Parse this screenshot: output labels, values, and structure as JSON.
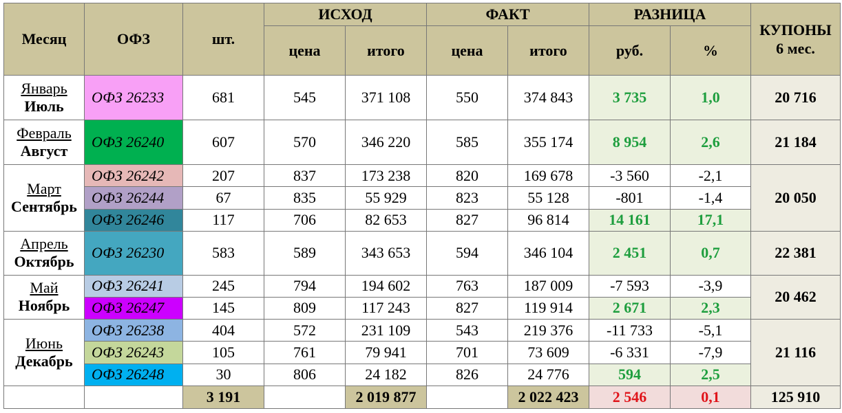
{
  "header": {
    "month": "Месяц",
    "ofz": "ОФЗ",
    "qty": "шт.",
    "coupons": "КУПОНЫ\n6 мес.",
    "sections": [
      {
        "title": "ИСХОД",
        "cols": [
          "цена",
          "итого"
        ]
      },
      {
        "title": "ФАКТ",
        "cols": [
          "цена",
          "итого"
        ]
      },
      {
        "title": "РАЗНИЦА",
        "cols": [
          "руб.",
          "%"
        ]
      }
    ]
  },
  "groups": [
    {
      "months": [
        "Январь",
        "Июль"
      ],
      "coupon": "20 716",
      "rows": [
        {
          "ofz": "ОФЗ 26233",
          "color": "#f8a0f6",
          "qty": "681",
          "price": "545",
          "total": "371 108",
          "fact_price": "550",
          "fact_total": "374 843",
          "diff": "3 735",
          "pct": "1,0"
        }
      ]
    },
    {
      "months": [
        "Февраль",
        "Август"
      ],
      "coupon": "21 184",
      "rows": [
        {
          "ofz": "ОФЗ 26240",
          "color": "#00b050",
          "qty": "607",
          "price": "570",
          "total": "346 220",
          "fact_price": "585",
          "fact_total": "355 174",
          "diff": "8 954",
          "pct": "2,6"
        }
      ]
    },
    {
      "months": [
        "Март",
        "Сентябрь"
      ],
      "coupon": "20 050",
      "rows": [
        {
          "ofz": "ОФЗ 26242",
          "color": "#e6b8b7",
          "qty": "207",
          "price": "837",
          "total": "173 238",
          "fact_price": "820",
          "fact_total": "169 678",
          "diff": "-3 560",
          "pct": "-2,1"
        },
        {
          "ofz": "ОФЗ 26244",
          "color": "#b1a0c7",
          "qty": "67",
          "price": "835",
          "total": "55 929",
          "fact_price": "823",
          "fact_total": "55 128",
          "diff": "-801",
          "pct": "-1,4"
        },
        {
          "ofz": "ОФЗ 26246",
          "color": "#31869b",
          "qty": "117",
          "price": "706",
          "total": "82 653",
          "fact_price": "827",
          "fact_total": "96 814",
          "diff": "14 161",
          "pct": "17,1"
        }
      ]
    },
    {
      "months": [
        "Апрель",
        "Октябрь"
      ],
      "coupon": "22 381",
      "rows": [
        {
          "ofz": "ОФЗ 26230",
          "color": "#44a7c0",
          "qty": "583",
          "price": "589",
          "total": "343 653",
          "fact_price": "594",
          "fact_total": "346 104",
          "diff": "2 451",
          "pct": "0,7"
        }
      ]
    },
    {
      "months": [
        "Май",
        "Ноябрь"
      ],
      "coupon": "20 462",
      "rows": [
        {
          "ofz": "ОФЗ 26241",
          "color": "#b8cce4",
          "qty": "245",
          "price": "794",
          "total": "194 602",
          "fact_price": "763",
          "fact_total": "187 009",
          "diff": "-7 593",
          "pct": "-3,9"
        },
        {
          "ofz": "ОФЗ 26247",
          "color": "#cc00ff",
          "qty": "145",
          "price": "809",
          "total": "117 243",
          "fact_price": "827",
          "fact_total": "119 914",
          "diff": "2 671",
          "pct": "2,3"
        }
      ]
    },
    {
      "months": [
        "Июнь",
        "Декабрь"
      ],
      "coupon": "21 116",
      "rows": [
        {
          "ofz": "ОФЗ 26238",
          "color": "#8db4e2",
          "qty": "404",
          "price": "572",
          "total": "231 109",
          "fact_price": "543",
          "fact_total": "219 376",
          "diff": "-11 733",
          "pct": "-5,1"
        },
        {
          "ofz": "ОФЗ 26243",
          "color": "#c4d79b",
          "qty": "105",
          "price": "761",
          "total": "79 941",
          "fact_price": "701",
          "fact_total": "73 609",
          "diff": "-6 331",
          "pct": "-7,9"
        },
        {
          "ofz": "ОФЗ 26248",
          "color": "#00b0f0",
          "qty": "30",
          "price": "806",
          "total": "24 182",
          "fact_price": "826",
          "fact_total": "24 776",
          "diff": "594",
          "pct": "2,5"
        }
      ]
    }
  ],
  "totals": {
    "qty": "3 191",
    "total": "2 019 877",
    "fact_total": "2 022 423",
    "diff": "2 546",
    "pct": "0,1",
    "coupons": "125 910"
  }
}
